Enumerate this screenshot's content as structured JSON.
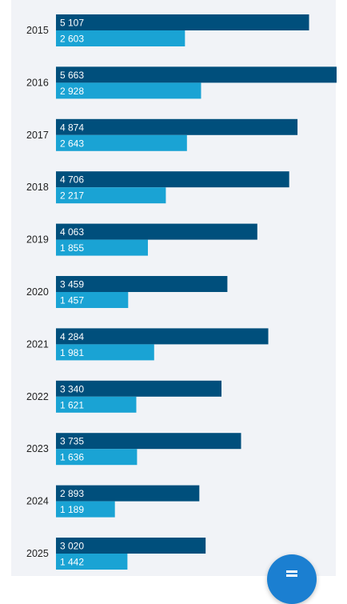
{
  "chart_data": {
    "type": "bar",
    "orientation": "horizontal",
    "categories": [
      "2015",
      "2016",
      "2017",
      "2018",
      "2019",
      "2020",
      "2021",
      "2022",
      "2023",
      "2024",
      "2025"
    ],
    "series": [
      {
        "values": [
          5107,
          5663,
          4874,
          4706,
          4063,
          3459,
          4284,
          3340,
          3735,
          2893,
          3020
        ],
        "labels": [
          "5 107",
          "5 663",
          "4 874",
          "4 706",
          "4 063",
          "3 459",
          "4 284",
          "3 340",
          "3 735",
          "2 893",
          "3 020"
        ],
        "color": "#004f7c"
      },
      {
        "values": [
          2603,
          2928,
          2643,
          2217,
          1855,
          1457,
          1981,
          1621,
          1636,
          1189,
          1442
        ],
        "labels": [
          "2 603",
          "2 928",
          "2 643",
          "2 217",
          "1 855",
          "1 457",
          "1 981",
          "1 621",
          "1 636",
          "1 189",
          "1 442"
        ],
        "color": "#1aa3d4"
      }
    ],
    "xlim": [
      0,
      5663
    ],
    "grid": false,
    "legend": "none"
  },
  "fab": {
    "icon": "menu-icon"
  }
}
